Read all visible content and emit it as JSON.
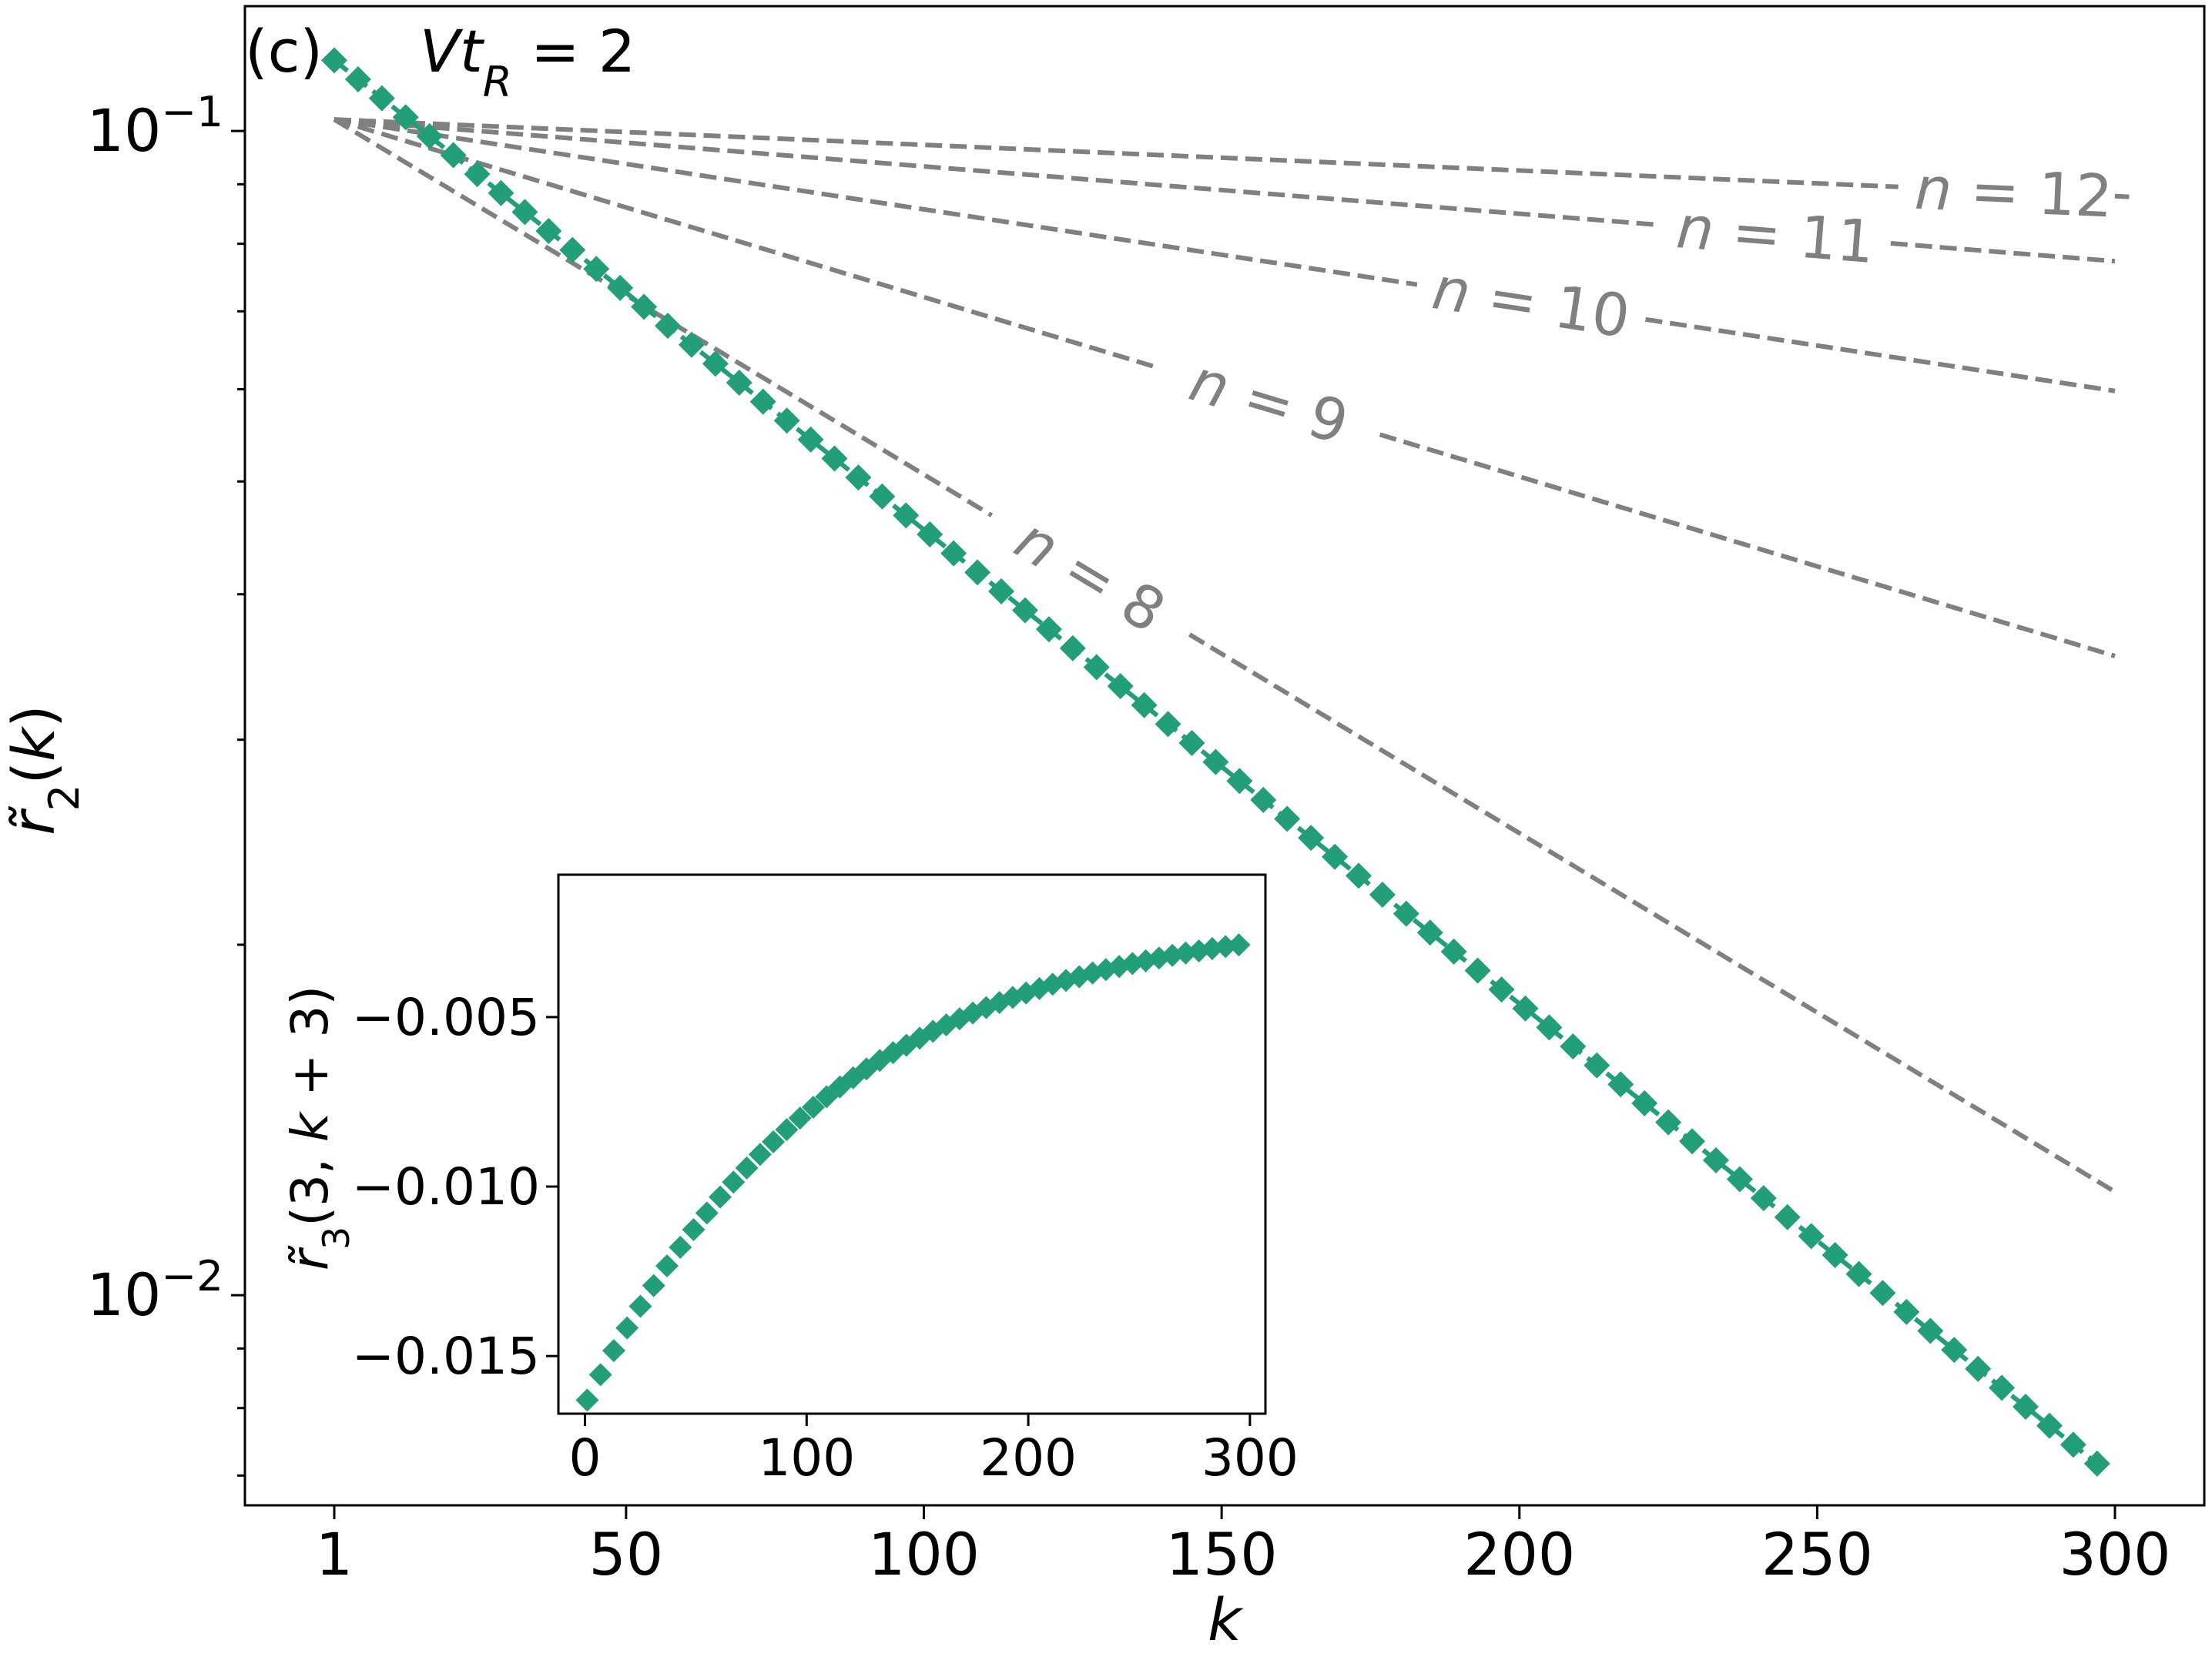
{
  "chart_data": [
    {
      "type": "line",
      "panel_label": "(c)",
      "annotation": "Vt_R = 2",
      "xlabel": "k",
      "ylabel": "r̃_2(k)",
      "yscale": "log",
      "xlim": [
        -14,
        315
      ],
      "ylim": [
        0.0066,
        0.128
      ],
      "x_ticks": [
        1,
        50,
        100,
        150,
        200,
        250,
        300
      ],
      "y_major_ticks": [
        {
          "value": 0.1,
          "label": "10^-1"
        },
        {
          "value": 0.01,
          "label": "10^-2"
        }
      ],
      "y_minor_ticks": [
        0.007,
        0.008,
        0.009,
        0.02,
        0.03,
        0.04,
        0.05,
        0.06,
        0.07,
        0.08,
        0.09
      ],
      "grid": false,
      "colors": {
        "data": "#229e78",
        "reference": "#808080"
      },
      "series": [
        {
          "kind": "markers",
          "marker": "diamond",
          "x_start": 1,
          "x_end": 298,
          "x_step": 4,
          "y_at_start": 0.115,
          "y_at_end": 0.0071,
          "fit_line": true
        }
      ],
      "reference_lines": [
        {
          "label": "n = 8",
          "x": [
            1,
            300
          ],
          "y": [
            0.1023,
            0.01227
          ],
          "label_x": 128
        },
        {
          "label": "n = 9",
          "x": [
            1,
            300
          ],
          "y": [
            0.1023,
            0.0354
          ],
          "label_x": 158
        },
        {
          "label": "n = 10",
          "x": [
            1,
            300
          ],
          "y": [
            0.1023,
            0.0598
          ],
          "label_x": 202
        },
        {
          "label": "n = 11",
          "x": [
            1,
            300
          ],
          "y": [
            0.1023,
            0.0773
          ],
          "label_x": 243
        },
        {
          "label": "n = 12",
          "x": [
            1,
            300
          ],
          "y": [
            0.1023,
            0.0879
          ],
          "label_x": 283
        }
      ]
    },
    {
      "type": "scatter",
      "role": "inset",
      "xlabel": "",
      "ylabel": "r̃_3(3, k + 3)",
      "xlim": [
        -12,
        307
      ],
      "ylim": [
        -0.0167,
        -0.0008
      ],
      "x_ticks": [
        0,
        100,
        200,
        300
      ],
      "y_ticks": [
        -0.005,
        -0.01,
        -0.015
      ],
      "y_tick_labels": [
        "−0.005",
        "−0.010",
        "−0.015"
      ],
      "color": "#229e78",
      "marker": "diamond",
      "x": [
        1,
        7,
        13,
        19,
        25,
        31,
        37,
        43,
        49,
        55,
        61,
        67,
        73,
        79,
        85,
        91,
        97,
        103,
        109,
        115,
        121,
        127,
        133,
        139,
        145,
        151,
        157,
        163,
        169,
        175,
        181,
        187,
        193,
        199,
        205,
        211,
        217,
        223,
        229,
        235,
        241,
        247,
        253,
        259,
        265,
        271,
        277,
        283,
        289,
        295
      ],
      "values": [
        -0.0163,
        -0.01555,
        -0.01484,
        -0.01417,
        -0.01353,
        -0.01292,
        -0.01234,
        -0.01179,
        -0.01127,
        -0.01078,
        -0.01031,
        -0.00987,
        -0.00945,
        -0.00905,
        -0.00868,
        -0.00832,
        -0.00798,
        -0.00766,
        -0.00735,
        -0.00706,
        -0.00679,
        -0.00653,
        -0.00628,
        -0.00605,
        -0.00583,
        -0.00562,
        -0.00542,
        -0.00523,
        -0.00505,
        -0.00488,
        -0.00472,
        -0.00457,
        -0.00442,
        -0.00429,
        -0.00416,
        -0.00403,
        -0.00392,
        -0.00381,
        -0.0037,
        -0.0036,
        -0.00351,
        -0.00342,
        -0.00334,
        -0.00326,
        -0.00318,
        -0.00311,
        -0.00305,
        -0.00298,
        -0.00292,
        -0.00287
      ]
    }
  ]
}
